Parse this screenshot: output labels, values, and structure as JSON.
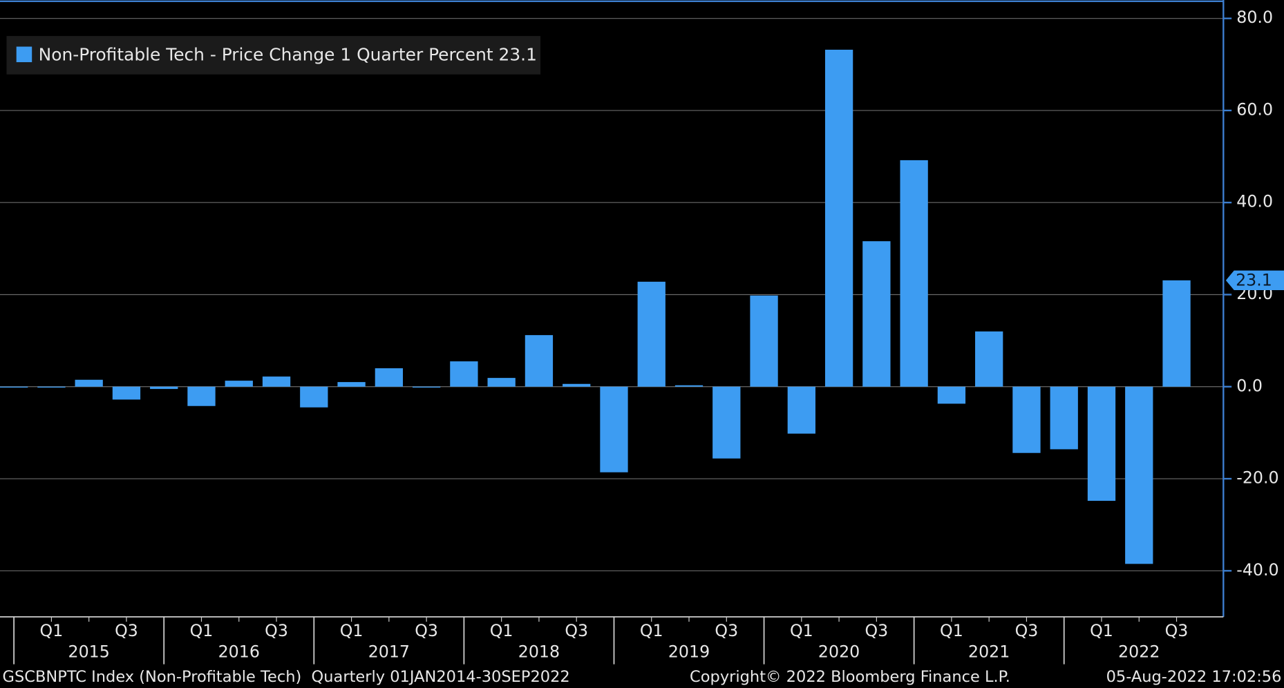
{
  "chart_data": {
    "type": "bar",
    "categories": [
      null,
      "Q1",
      null,
      "Q3",
      null,
      "Q1",
      null,
      "Q3",
      null,
      "Q1",
      null,
      "Q3",
      null,
      "Q1",
      null,
      "Q3",
      null,
      "Q1",
      null,
      "Q3",
      null,
      "Q1",
      null,
      "Q3",
      null,
      "Q1",
      null,
      "Q3",
      null,
      "Q1",
      null,
      "Q3"
    ],
    "years": [
      "2015",
      "2016",
      "2017",
      "2018",
      "2019",
      "2020",
      "2021",
      "2022"
    ],
    "series": [
      {
        "name": "Non-Profitable Tech - Price Change 1 Quarter Percent",
        "color": "#3d9cf2",
        "values": [
          -0.2,
          -0.2,
          1.5,
          -2.8,
          -0.5,
          -4.2,
          1.3,
          2.2,
          -4.5,
          1.0,
          4.0,
          -0.2,
          5.5,
          1.9,
          11.2,
          0.6,
          -18.6,
          22.8,
          0.3,
          -15.6,
          19.8,
          -10.2,
          73.2,
          31.6,
          49.2,
          -3.7,
          12.0,
          -14.4,
          -13.6,
          -24.8,
          -38.5,
          23.1
        ]
      }
    ],
    "ylim": [
      -50,
      84
    ],
    "yticks": [
      {
        "value": -40,
        "label": "-40.0"
      },
      {
        "value": -20,
        "label": "-20.0"
      },
      {
        "value": 0,
        "label": "0.0"
      },
      {
        "value": 20,
        "label": "20.0"
      },
      {
        "value": 40,
        "label": "40.0"
      },
      {
        "value": 60,
        "label": "60.0"
      },
      {
        "value": 80,
        "label": "80.0"
      }
    ],
    "grid": true,
    "legend": "top-left",
    "footer": {
      "left": "GSCBNPTC Index (Non-Profitable Tech)  Quarterly 01JAN2014-30SEP2022",
      "center": "Copyright© 2022 Bloomberg Finance L.P.",
      "right": "05-Aug-2022 17:02:56"
    }
  }
}
